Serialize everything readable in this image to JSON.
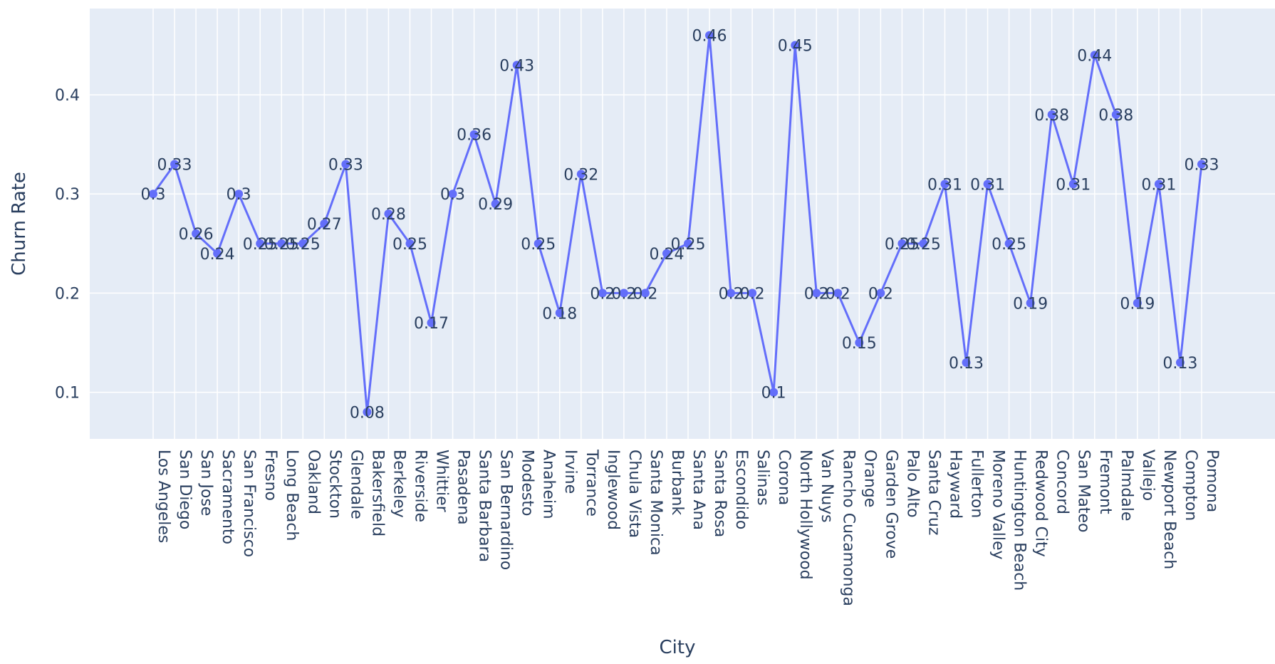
{
  "chart_data": {
    "type": "line",
    "xlabel": "City",
    "ylabel": "Churn Rate",
    "ylim": [
      0.053,
      0.487
    ],
    "yticks": [
      0.1,
      0.2,
      0.3,
      0.4
    ],
    "grid": true,
    "line_color": "#636efa",
    "plot_bg_color": "#e5ecf6",
    "categories": [
      "Los Angeles",
      "San Diego",
      "San Jose",
      "Sacramento",
      "San Francisco",
      "Fresno",
      "Long Beach",
      "Oakland",
      "Stockton",
      "Glendale",
      "Bakersfield",
      "Berkeley",
      "Riverside",
      "Whittier",
      "Pasadena",
      "Santa Barbara",
      "San Bernardino",
      "Modesto",
      "Anaheim",
      "Irvine",
      "Torrance",
      "Inglewood",
      "Chula Vista",
      "Santa Monica",
      "Burbank",
      "Santa Ana",
      "Santa Rosa",
      "Escondido",
      "Salinas",
      "Corona",
      "North Hollywood",
      "Van Nuys",
      "Rancho Cucamonga",
      "Orange",
      "Garden Grove",
      "Palo Alto",
      "Santa Cruz",
      "Hayward",
      "Fullerton",
      "Moreno Valley",
      "Huntington Beach",
      "Redwood City",
      "Concord",
      "San Mateo",
      "Fremont",
      "Palmdale",
      "Vallejo",
      "Newport Beach",
      "Compton",
      "Pomona"
    ],
    "values": [
      0.3,
      0.33,
      0.26,
      0.24,
      0.3,
      0.25,
      0.25,
      0.25,
      0.27,
      0.33,
      0.08,
      0.28,
      0.25,
      0.17,
      0.3,
      0.36,
      0.29,
      0.43,
      0.25,
      0.18,
      0.32,
      0.2,
      0.2,
      0.2,
      0.24,
      0.25,
      0.46,
      0.2,
      0.2,
      0.1,
      0.45,
      0.2,
      0.2,
      0.15,
      0.2,
      0.25,
      0.25,
      0.31,
      0.13,
      0.31,
      0.25,
      0.19,
      0.38,
      0.31,
      0.44,
      0.38,
      0.19,
      0.31,
      0.13,
      0.33
    ],
    "labels": [
      "0.3",
      "0.33",
      "0.26",
      "0.24",
      "0.3",
      "0.25",
      "0.25",
      "0.25",
      "0.27",
      "0.33",
      "0.08",
      "0.28",
      "0.25",
      "0.17",
      "0.3",
      "0.36",
      "0.29",
      "0.43",
      "0.25",
      "0.18",
      "0.32",
      "0.2",
      "0.2",
      "0.2",
      "0.24",
      "0.25",
      "0.46",
      "0.2",
      "0.2",
      "0.1",
      "0.45",
      "0.2",
      "0.2",
      "0.15",
      "0.2",
      "0.25",
      "0.25",
      "0.31",
      "0.13",
      "0.31",
      "0.25",
      "0.19",
      "0.38",
      "0.31",
      "0.44",
      "0.38",
      "0.19",
      "0.31",
      "0.13",
      "0.33"
    ],
    "ytick_labels": [
      "0.1",
      "0.2",
      "0.3",
      "0.4"
    ]
  }
}
